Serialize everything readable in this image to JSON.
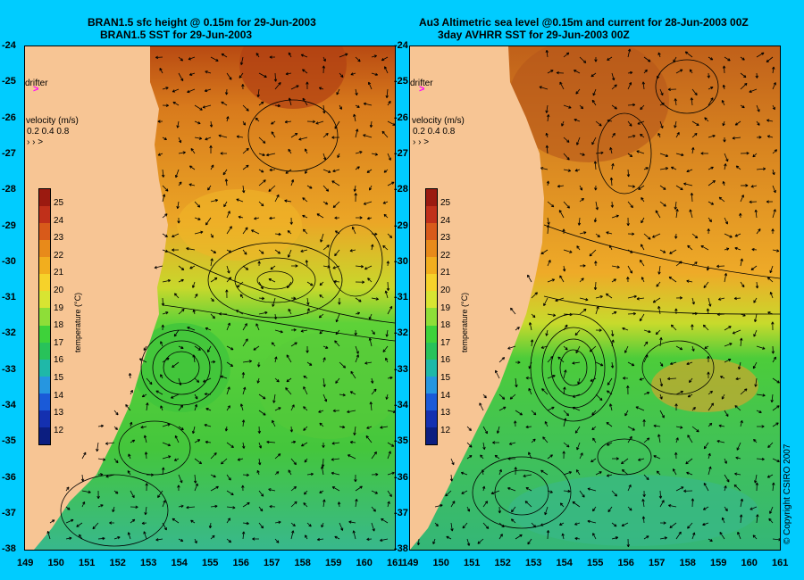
{
  "left_panel": {
    "title_line1": "BRAN1.5 sfc height @ 0.15m for 29-Jun-2003",
    "title_line2": "BRAN1.5 SST for 29-Jun-2003",
    "drifter_label": "drifter",
    "velocity_label": "velocity (m/s)",
    "velocity_scale": "0.2 0.4 0.8"
  },
  "right_panel": {
    "title_line1": "Au3 Altimetric sea level  @0.15m and current for 28-Jun-2003 00Z",
    "title_line2": "3day AVHRR SST for 29-Jun-2003 00Z",
    "drifter_label": "drifter",
    "velocity_label": "velocity (m/s)",
    "velocity_scale": "0.2 0.4 0.8"
  },
  "lat_ticks": [
    "-24",
    "-25",
    "-26",
    "-27",
    "-28",
    "-29",
    "-30",
    "-31",
    "-32",
    "-33",
    "-34",
    "-35",
    "-36",
    "-37",
    "-38"
  ],
  "lon_ticks": [
    "149",
    "150",
    "151",
    "152",
    "153",
    "154",
    "155",
    "156",
    "157",
    "158",
    "159",
    "160",
    "161"
  ],
  "colorbar": {
    "axis_label": "temperature (°C)",
    "ticks": [
      "25",
      "24",
      "23",
      "22",
      "21",
      "20",
      "19",
      "18",
      "17",
      "16",
      "15",
      "14",
      "13",
      "12"
    ],
    "colors": [
      "#9b1a10",
      "#c0301a",
      "#d85a1a",
      "#e88a1a",
      "#f2ae1e",
      "#f6d22a",
      "#d8e432",
      "#8ede38",
      "#3ed23a",
      "#28c25a",
      "#1fb8a8",
      "#2696e0",
      "#1a5ad8",
      "#1430b0",
      "#0c1e80"
    ]
  },
  "copyright": "© Copyright CSIRO 2007",
  "colors": {
    "background": "#00ccff",
    "land": "#f7c594",
    "drifter": "#ff00ff"
  }
}
